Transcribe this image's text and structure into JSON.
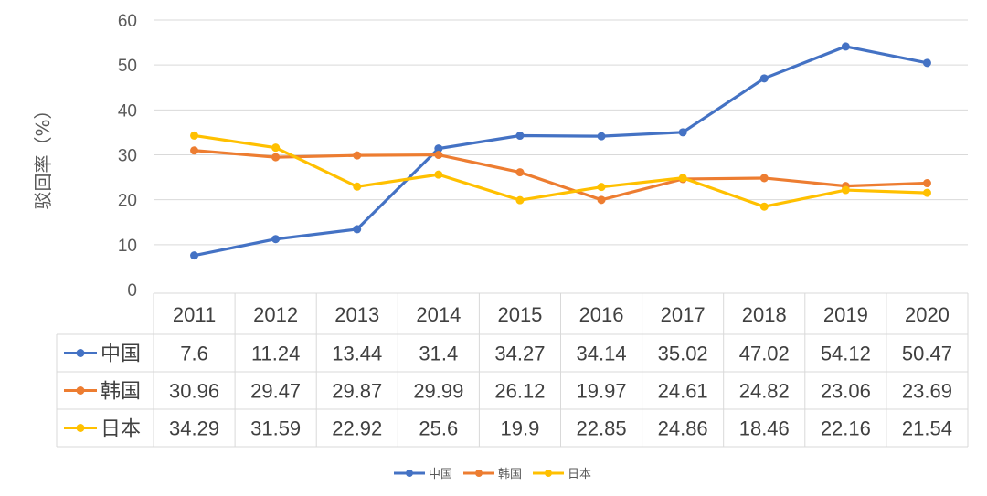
{
  "chart_data": {
    "type": "line",
    "title": "",
    "xlabel": "",
    "ylabel": "驳回率（%）",
    "ylim": [
      0,
      60
    ],
    "yticks": [
      0,
      10,
      20,
      30,
      40,
      50,
      60
    ],
    "grid": true,
    "legend_position": "bottom",
    "data_table": true,
    "categories": [
      "2011",
      "2012",
      "2013",
      "2014",
      "2015",
      "2016",
      "2017",
      "2018",
      "2019",
      "2020"
    ],
    "series": [
      {
        "name": "中国",
        "color": "#4472C4",
        "values": [
          7.6,
          11.24,
          13.44,
          31.4,
          34.27,
          34.14,
          35.02,
          47.02,
          54.12,
          50.47
        ]
      },
      {
        "name": "韩国",
        "color": "#ED7D31",
        "values": [
          30.96,
          29.47,
          29.87,
          29.99,
          26.12,
          19.97,
          24.61,
          24.82,
          23.06,
          23.69
        ]
      },
      {
        "name": "日本",
        "color": "#FFC000",
        "values": [
          34.29,
          31.59,
          22.92,
          25.6,
          19.9,
          22.85,
          24.86,
          18.46,
          22.16,
          21.54
        ]
      }
    ]
  }
}
